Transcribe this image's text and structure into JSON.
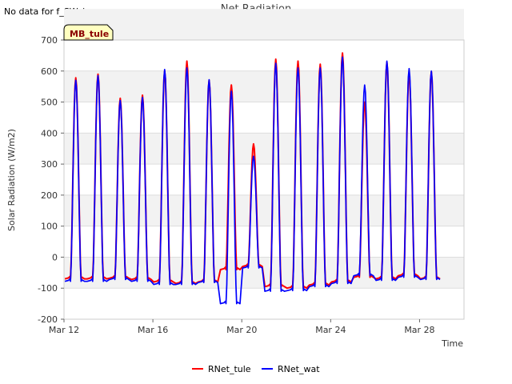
{
  "chart_data": {
    "type": "line",
    "title": "Net Radiation",
    "no_data_note": "No data for f_SW_in",
    "site_label": "MB_tule",
    "xlabel": "Time",
    "ylabel": "Solar Radiation (W/m2)",
    "ylim": [
      -200,
      700
    ],
    "yticks": [
      "-200",
      "-100",
      "0",
      "100",
      "200",
      "300",
      "400",
      "500",
      "600",
      "700"
    ],
    "xlim_days": [
      12,
      30
    ],
    "xticks": [
      {
        "label": "Mar 12",
        "day": 12
      },
      {
        "label": "Mar 16",
        "day": 16
      },
      {
        "label": "Mar 20",
        "day": 20
      },
      {
        "label": "Mar 24",
        "day": 24
      },
      {
        "label": "Mar 28",
        "day": 28
      }
    ],
    "grid": true,
    "legend_position": "bottom-center",
    "series": [
      {
        "name": "RNet_tule",
        "color": "#ff0000",
        "daily_peaks": [
          {
            "day": 12,
            "peak": 578,
            "night": -70
          },
          {
            "day": 13,
            "peak": 590,
            "night": -70
          },
          {
            "day": 14,
            "peak": 512,
            "night": -68
          },
          {
            "day": 15,
            "peak": 522,
            "night": -72
          },
          {
            "day": 16,
            "peak": 600,
            "night": -80
          },
          {
            "day": 17,
            "peak": 632,
            "night": -85
          },
          {
            "day": 18,
            "peak": 570,
            "night": -80
          },
          {
            "day": 19,
            "peak": 555,
            "night": -40
          },
          {
            "day": 20,
            "peak": 365,
            "night": -30
          },
          {
            "day": 21,
            "peak": 638,
            "night": -95
          },
          {
            "day": 22,
            "peak": 632,
            "night": -100
          },
          {
            "day": 23,
            "peak": 622,
            "night": -90
          },
          {
            "day": 24,
            "peak": 658,
            "night": -80
          },
          {
            "day": 25,
            "peak": 500,
            "night": -65
          },
          {
            "day": 26,
            "peak": 628,
            "night": -70
          },
          {
            "day": 27,
            "peak": 592,
            "night": -60
          },
          {
            "day": 28,
            "peak": 598,
            "night": -70
          }
        ]
      },
      {
        "name": "RNet_wat",
        "color": "#0000ff",
        "daily_peaks": [
          {
            "day": 12,
            "peak": 570,
            "night": -78
          },
          {
            "day": 13,
            "peak": 585,
            "night": -78
          },
          {
            "day": 14,
            "peak": 505,
            "night": -72
          },
          {
            "day": 15,
            "peak": 515,
            "night": -78
          },
          {
            "day": 16,
            "peak": 605,
            "night": -88
          },
          {
            "day": 17,
            "peak": 610,
            "night": -88
          },
          {
            "day": 18,
            "peak": 572,
            "night": -82
          },
          {
            "day": 19,
            "peak": 535,
            "night": -150
          },
          {
            "day": 20,
            "peak": 325,
            "night": -35
          },
          {
            "day": 21,
            "peak": 625,
            "night": -110
          },
          {
            "day": 22,
            "peak": 610,
            "night": -108
          },
          {
            "day": 23,
            "peak": 610,
            "night": -95
          },
          {
            "day": 24,
            "peak": 645,
            "night": -85
          },
          {
            "day": 25,
            "peak": 555,
            "night": -60
          },
          {
            "day": 26,
            "peak": 632,
            "night": -75
          },
          {
            "day": 27,
            "peak": 608,
            "night": -65
          },
          {
            "day": 28,
            "peak": 600,
            "night": -72
          }
        ]
      }
    ]
  }
}
